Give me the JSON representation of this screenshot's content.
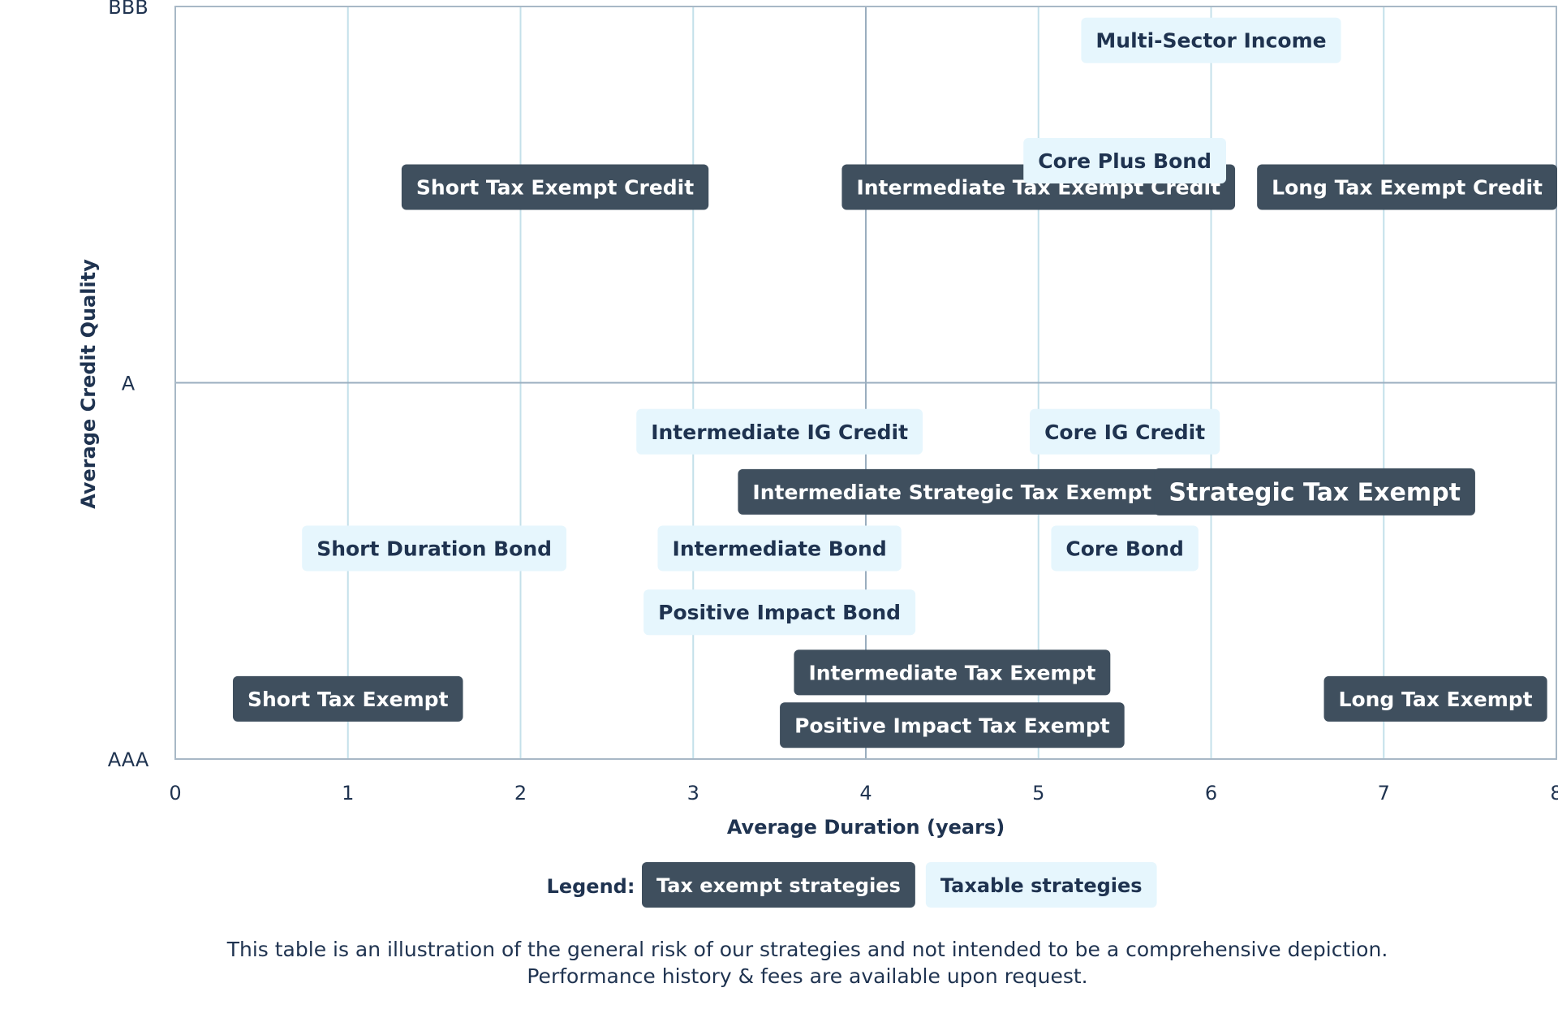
{
  "chart_data": {
    "type": "scatter",
    "title": "",
    "xlabel": "Average Duration (years)",
    "ylabel": "Average Credit Quality",
    "xlim": [
      0,
      8
    ],
    "x_ticks": [
      "0",
      "1",
      "2",
      "3",
      "4",
      "5",
      "6",
      "7",
      "8"
    ],
    "y_ticks": [
      "AAA",
      "A",
      "BBB"
    ],
    "ylim": [
      0,
      2
    ],
    "grid": true,
    "legend_title": "Legend:",
    "legend_position": "bottom-center",
    "series": [
      {
        "name": "Tax exempt strategies",
        "color": "#3f4f5e",
        "text_color": "#ffffff",
        "points": [
          {
            "label": "Short Tax Exempt Credit",
            "x": 2.2,
            "y": 1.52
          },
          {
            "label": "Intermediate Tax Exempt Credit",
            "x": 5.0,
            "y": 1.52
          },
          {
            "label": "Long Tax Exempt Credit",
            "x": 7.2,
            "y": 1.52
          },
          {
            "label": "Intermediate Strategic Tax Exempt",
            "x": 4.5,
            "y": 0.71
          },
          {
            "label": "Strategic Tax Exempt",
            "x": 6.6,
            "y": 0.71
          },
          {
            "label": "Intermediate Tax Exempt",
            "x": 4.5,
            "y": 0.23
          },
          {
            "label": "Short Tax Exempt",
            "x": 1.0,
            "y": 0.16
          },
          {
            "label": "Positive Impact Tax Exempt",
            "x": 4.5,
            "y": 0.09
          },
          {
            "label": "Long Tax Exempt",
            "x": 7.3,
            "y": 0.16
          }
        ]
      },
      {
        "name": "Taxable strategies",
        "color": "#e6f6fd",
        "text_color": "#1f3350",
        "points": [
          {
            "label": "Multi-Sector Income",
            "x": 6.0,
            "y": 1.91
          },
          {
            "label": "Core Plus Bond",
            "x": 5.5,
            "y": 1.59
          },
          {
            "label": "Intermediate IG Credit",
            "x": 3.5,
            "y": 0.87
          },
          {
            "label": "Core IG Credit",
            "x": 5.5,
            "y": 0.87
          },
          {
            "label": "Short Duration Bond",
            "x": 1.5,
            "y": 0.56
          },
          {
            "label": "Intermediate Bond",
            "x": 3.5,
            "y": 0.56
          },
          {
            "label": "Core Bond",
            "x": 5.5,
            "y": 0.56
          },
          {
            "label": "Positive Impact Bond",
            "x": 3.5,
            "y": 0.39
          }
        ]
      }
    ]
  },
  "footnote": {
    "line1": "This table is an illustration of the general risk of our strategies and not intended to be a comprehensive depiction.",
    "line2": "Performance history & fees are available upon request."
  }
}
